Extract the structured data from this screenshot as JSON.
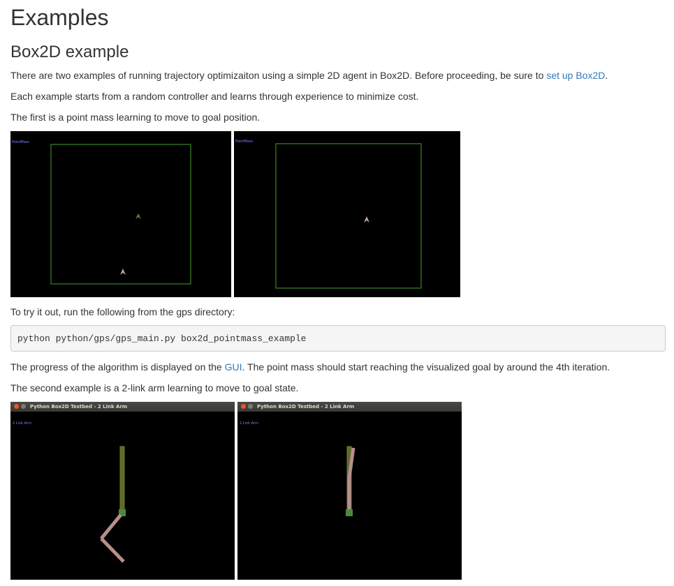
{
  "page": {
    "title": "Examples",
    "section_title": "Box2D example"
  },
  "paragraphs": {
    "p1_text": "There are two examples of running trajectory optimizaiton using a simple 2D agent in Box2D. Before proceeding, be sure to ",
    "p1_link": "set up Box2D",
    "p1_end": ".",
    "p2": "Each example starts from a random controller and learns through experience to minimize cost.",
    "p3": "The first is a point mass learning to move to goal position.",
    "p4": "To try it out, run the following from the gps directory:",
    "p5_text": "The progress of the algorithm is displayed on the ",
    "p5_link": "GUI",
    "p5_end": ". The point mass should start reaching the visualized goal by around the 4th iteration.",
    "p6": "The second example is a 2-link arm learning to move to goal state."
  },
  "code": {
    "command": "python python/gps/gps_main.py box2d_pointmass_example"
  },
  "pointmass_images": {
    "label": "PointMass"
  },
  "arm_images": {
    "window_title": "Python Box2D Testbed - 2 Link Arm",
    "label": "2 Link Arm"
  },
  "colors": {
    "link": "#337ab7",
    "boundary_green": "#2f6a1f",
    "agent_pink": "#c4a29f",
    "goal_green": "#4a8a3a",
    "arm_pink": "#b58f8c",
    "arm_olive": "#5d6a2a"
  }
}
